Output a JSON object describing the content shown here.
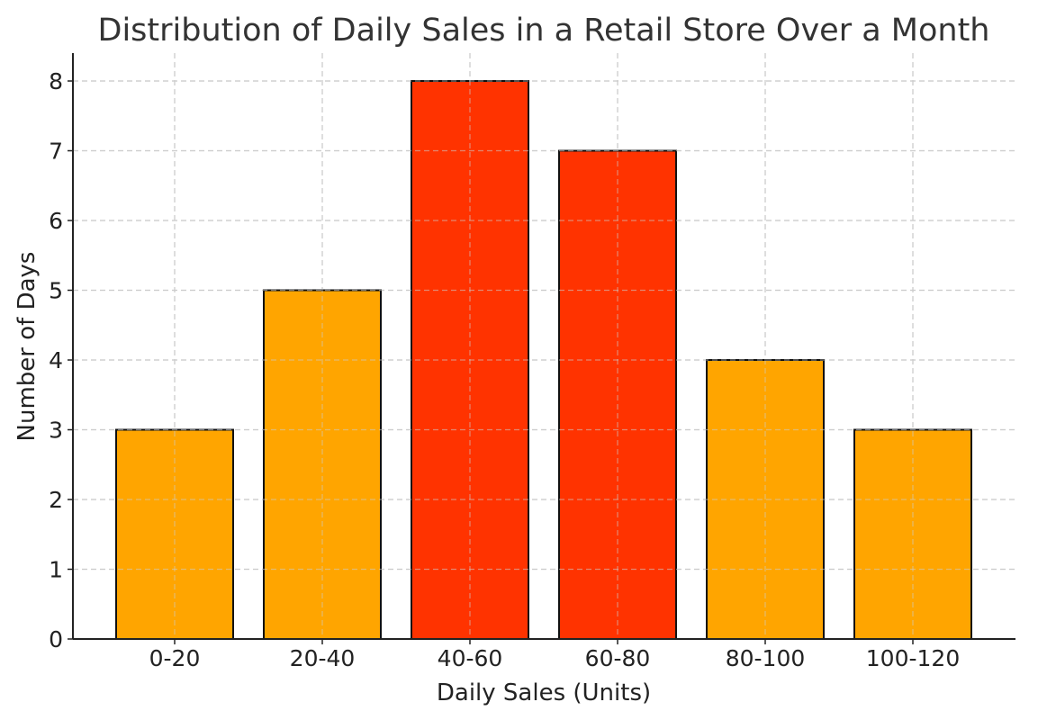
{
  "chart_data": {
    "type": "bar",
    "title": "Distribution of Daily Sales in a Retail Store Over a Month",
    "xlabel": "Daily Sales (Units)",
    "ylabel": "Number of Days",
    "categories": [
      "0-20",
      "20-40",
      "40-60",
      "60-80",
      "80-100",
      "100-120"
    ],
    "values": [
      3,
      5,
      8,
      7,
      4,
      3
    ],
    "bar_colors": [
      "#FFA500",
      "#FFA500",
      "#FF3300",
      "#FF3300",
      "#FFA500",
      "#FFA500"
    ],
    "ylim": [
      0,
      8.4
    ],
    "yticks": [
      0,
      1,
      2,
      3,
      4,
      5,
      6,
      7,
      8
    ],
    "grid": true
  }
}
